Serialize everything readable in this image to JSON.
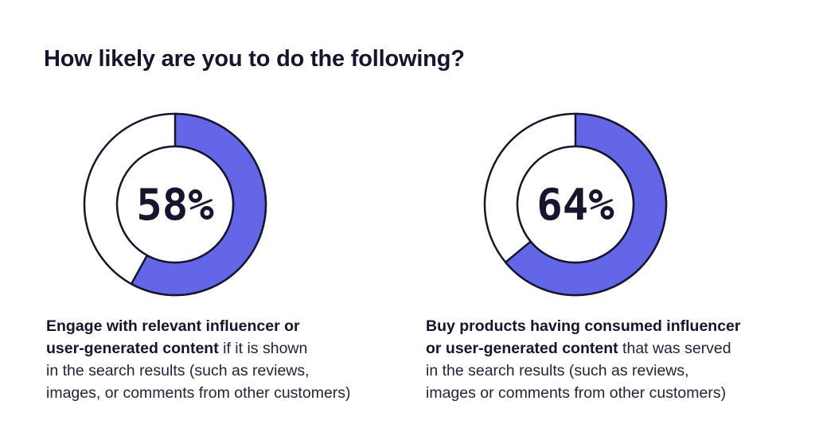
{
  "title": "How likely are you to do the following?",
  "colors": {
    "accent": "#6366e6",
    "outline": "#15152e",
    "background": "#ffffff"
  },
  "chart_data": [
    {
      "type": "pie",
      "values": [
        58,
        42
      ],
      "label": "58%",
      "caption_lines": [
        {
          "bold": "Engage with relevant influencer or",
          "rest": ""
        },
        {
          "bold": "user-generated content",
          "rest": " if it is shown"
        },
        {
          "bold": "",
          "rest": "in the search results (such as reviews,"
        },
        {
          "bold": "",
          "rest": "images, or comments from other customers)"
        }
      ]
    },
    {
      "type": "pie",
      "values": [
        64,
        36
      ],
      "label": "64%",
      "caption_lines": [
        {
          "bold": "Buy products having consumed influencer",
          "rest": ""
        },
        {
          "bold": "or user-generated content",
          "rest": " that was served"
        },
        {
          "bold": "",
          "rest": "in the search results (such as reviews,"
        },
        {
          "bold": "",
          "rest": "images or comments from other customers)"
        }
      ]
    }
  ]
}
